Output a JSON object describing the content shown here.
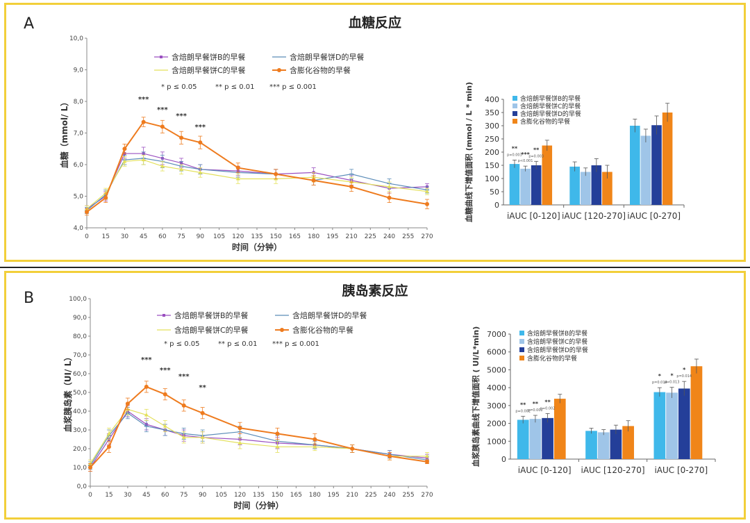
{
  "panels": [
    {
      "letter": "A",
      "title": "血糖反应",
      "line_legend": [
        "含焙朗早餐饼B的早餐",
        "含焙朗早餐饼D的早餐",
        "含焙朗早餐饼C的早餐",
        "含膨化谷物的早餐"
      ],
      "sig_legend": [
        "* p ≤ 0.05",
        "** p ≤ 0.01",
        "*** p ≤ 0.001"
      ],
      "bar_legend": [
        "含焙朗早餐饼B的早餐",
        "含焙朗早餐饼C的早餐",
        "含焙朗早餐饼D的早餐",
        "含膨化谷物的早餐"
      ],
      "sig_marks": [
        {
          "x": 45,
          "text": "***"
        },
        {
          "x": 60,
          "text": "***"
        },
        {
          "x": 75,
          "text": "***"
        },
        {
          "x": 90,
          "text": "***"
        }
      ],
      "bar_sig": [
        {
          "bar": 0,
          "star": "**",
          "p": "p=0.003"
        },
        {
          "bar": 1,
          "star": "***",
          "p": "p<0.001"
        },
        {
          "bar": 2,
          "star": "**",
          "p": "p=0.003"
        }
      ]
    },
    {
      "letter": "B",
      "title": "胰岛素反应",
      "line_legend": [
        "含焙朗早餐饼B的早餐",
        "含焙朗早餐饼D的早餐",
        "含焙朗早餐饼C的早餐",
        "含膨化谷物的早餐"
      ],
      "sig_legend": [
        "* p ≤ 0.05",
        "** p ≤ 0.01",
        "*** p ≤ 0.001"
      ],
      "bar_legend": [
        "含焙朗早餐饼B的早餐",
        "含焙朗早餐饼C的早餐",
        "含焙朗早餐饼D的早餐",
        "含膨化谷物的早餐"
      ],
      "sig_marks": [
        {
          "x": 45,
          "text": "***"
        },
        {
          "x": 60,
          "text": "***"
        },
        {
          "x": 75,
          "text": "***"
        },
        {
          "x": 90,
          "text": "**"
        }
      ],
      "bar_sig": [
        {
          "bar": 0,
          "star": "**",
          "p": "p=0.002"
        },
        {
          "bar": 1,
          "star": "**",
          "p": "p=0.002"
        },
        {
          "bar": 2,
          "star": "**",
          "p": "p=0.002"
        },
        {
          "bar": 0,
          "group": 2,
          "star": "*",
          "p": "p=0.014"
        },
        {
          "bar": 1,
          "group": 2,
          "star": "*",
          "p": "p=0.013"
        },
        {
          "bar": 2,
          "group": 2,
          "star": "*",
          "p": "p=0.014"
        }
      ]
    }
  ],
  "colors": {
    "B": "#9a4fc0",
    "D": "#5b8cb8",
    "C": "#e3e05a",
    "puffed": "#ee7b1e",
    "bar_B": "#3fb8ea",
    "bar_C": "#9fc5e8",
    "bar_D": "#243f99",
    "bar_puffed": "#f08519"
  },
  "chart_data": [
    {
      "type": "line",
      "ylabel": "血糖（mmol/ L）",
      "xlabel": "时间（分钟）",
      "ylim": [
        4.0,
        10.0
      ],
      "ytick_labels": [
        "4,0",
        "5,0",
        "6,0",
        "7,0",
        "8,0",
        "9,0",
        "10,0"
      ],
      "x_ticks": [
        0,
        15,
        30,
        45,
        60,
        75,
        90,
        105,
        120,
        135,
        150,
        165,
        180,
        195,
        210,
        225,
        240,
        255,
        270
      ],
      "x": [
        0,
        15,
        30,
        45,
        60,
        75,
        90,
        120,
        150,
        180,
        210,
        240,
        270
      ],
      "series": [
        {
          "name": "含焙朗早餐饼B的早餐",
          "color_key": "B",
          "values": [
            4.6,
            5.0,
            6.35,
            6.35,
            6.2,
            6.05,
            5.85,
            5.8,
            5.7,
            5.75,
            5.5,
            5.25,
            5.3
          ],
          "err": [
            0.1,
            0.15,
            0.15,
            0.2,
            0.2,
            0.15,
            0.15,
            0.15,
            0.15,
            0.15,
            0.15,
            0.15,
            0.1
          ]
        },
        {
          "name": "含焙朗早餐饼D的早餐",
          "color_key": "D",
          "values": [
            4.55,
            5.05,
            6.15,
            6.2,
            6.1,
            5.95,
            5.85,
            5.75,
            5.7,
            5.5,
            5.7,
            5.4,
            5.2
          ],
          "err": [
            0.1,
            0.15,
            0.15,
            0.2,
            0.2,
            0.15,
            0.15,
            0.15,
            0.15,
            0.15,
            0.15,
            0.15,
            0.1
          ]
        },
        {
          "name": "含焙朗早餐饼C的早餐",
          "color_key": "C",
          "values": [
            4.6,
            5.1,
            6.1,
            6.15,
            5.95,
            5.85,
            5.75,
            5.55,
            5.55,
            5.6,
            5.45,
            5.3,
            5.15
          ],
          "err": [
            0.1,
            0.15,
            0.15,
            0.15,
            0.15,
            0.15,
            0.15,
            0.15,
            0.15,
            0.15,
            0.15,
            0.15,
            0.1
          ]
        },
        {
          "name": "含膨化谷物的早餐",
          "color_key": "puffed",
          "values": [
            4.5,
            4.95,
            6.5,
            7.35,
            7.2,
            6.85,
            6.7,
            5.9,
            5.7,
            5.5,
            5.3,
            4.95,
            4.75
          ],
          "err": [
            0.1,
            0.15,
            0.15,
            0.15,
            0.2,
            0.2,
            0.2,
            0.15,
            0.15,
            0.15,
            0.15,
            0.15,
            0.15
          ]
        }
      ]
    },
    {
      "type": "bar",
      "ylabel": "血糖曲线下增值面积 (mmol / L * min)",
      "ylim": [
        0,
        400
      ],
      "ytick_labels": [
        "0",
        "50",
        "100",
        "150",
        "200",
        "250",
        "300",
        "350",
        "400"
      ],
      "categories": [
        "iAUC [0-120]",
        "iAUC [120-270]",
        "iAUC [0-270]"
      ],
      "series": [
        {
          "name": "含焙朗早餐饼B的早餐",
          "color_key": "bar_B",
          "values": [
            155,
            145,
            300
          ],
          "err": [
            15,
            18,
            25
          ]
        },
        {
          "name": "含焙朗早餐饼C的早餐",
          "color_key": "bar_C",
          "values": [
            137,
            125,
            262
          ],
          "err": [
            10,
            15,
            25
          ]
        },
        {
          "name": "含焙朗早餐饼D的早餐",
          "color_key": "bar_D",
          "values": [
            150,
            150,
            302
          ],
          "err": [
            15,
            25,
            35
          ]
        },
        {
          "name": "含膨化谷物的早餐",
          "color_key": "bar_puffed",
          "values": [
            225,
            125,
            350
          ],
          "err": [
            20,
            25,
            35
          ]
        }
      ]
    },
    {
      "type": "line",
      "ylabel": "血浆胰岛素（UI/ L）",
      "xlabel": "时间（分钟）",
      "ylim": [
        0,
        100
      ],
      "ytick_labels": [
        "0,0",
        "10,0",
        "20,0",
        "30,0",
        "40,0",
        "50,0",
        "60,0",
        "70,0",
        "80,0",
        "90,0",
        "100,0"
      ],
      "x_ticks": [
        0,
        15,
        30,
        45,
        60,
        75,
        90,
        105,
        120,
        135,
        150,
        165,
        180,
        195,
        210,
        225,
        240,
        255,
        270
      ],
      "x": [
        0,
        15,
        30,
        45,
        60,
        75,
        90,
        120,
        150,
        180,
        210,
        240,
        270
      ],
      "series": [
        {
          "name": "含焙朗早餐饼B的早餐",
          "color_key": "B",
          "values": [
            10,
            25,
            40,
            33,
            30,
            27,
            26,
            25,
            23,
            22,
            20,
            17,
            15
          ],
          "err": [
            2,
            3,
            3,
            3,
            3,
            3,
            3,
            3,
            3,
            2,
            2,
            2,
            2
          ]
        },
        {
          "name": "含焙朗早餐饼D的早餐",
          "color_key": "D",
          "values": [
            11,
            27,
            39,
            32,
            30,
            28,
            27,
            29,
            24,
            22,
            20,
            17,
            14
          ],
          "err": [
            2,
            3,
            3,
            3,
            3,
            3,
            3,
            3,
            3,
            2,
            2,
            2,
            2
          ]
        },
        {
          "name": "含焙朗早餐饼C的早餐",
          "color_key": "C",
          "values": [
            12,
            28,
            41,
            38,
            32,
            26,
            26,
            23,
            21,
            21,
            20,
            16,
            16
          ],
          "err": [
            2,
            3,
            3,
            3,
            3,
            3,
            3,
            3,
            3,
            2,
            2,
            2,
            2
          ]
        },
        {
          "name": "含膨化谷物的早餐",
          "color_key": "puffed",
          "values": [
            10,
            21,
            44,
            53,
            49,
            43,
            39,
            31,
            28,
            25,
            20,
            16,
            13
          ],
          "err": [
            2,
            3,
            3,
            3,
            3,
            3,
            3,
            3,
            3,
            3,
            2,
            2,
            1
          ]
        }
      ]
    },
    {
      "type": "bar",
      "ylabel": "血浆胰岛素曲线下增值面积 ( UI/L*min)",
      "ylim": [
        0,
        7000
      ],
      "ytick_labels": [
        "0",
        "1000",
        "2000",
        "3000",
        "4000",
        "5000",
        "6000",
        "7000"
      ],
      "categories": [
        "iAUC [0-120]",
        "iAUC [120-270]",
        "iAUC [0-270]"
      ],
      "series": [
        {
          "name": "含焙朗早餐饼B的早餐",
          "color_key": "bar_B",
          "values": [
            2200,
            1580,
            3750
          ],
          "err": [
            200,
            150,
            250
          ]
        },
        {
          "name": "含焙朗早餐饼C的早餐",
          "color_key": "bar_C",
          "values": [
            2250,
            1500,
            3720
          ],
          "err": [
            200,
            150,
            300
          ]
        },
        {
          "name": "含焙朗早餐饼D的早餐",
          "color_key": "bar_D",
          "values": [
            2300,
            1650,
            3950
          ],
          "err": [
            250,
            250,
            400
          ]
        },
        {
          "name": "含膨化谷物的早餐",
          "color_key": "bar_puffed",
          "values": [
            3380,
            1850,
            5200
          ],
          "err": [
            250,
            300,
            400
          ]
        }
      ]
    }
  ]
}
